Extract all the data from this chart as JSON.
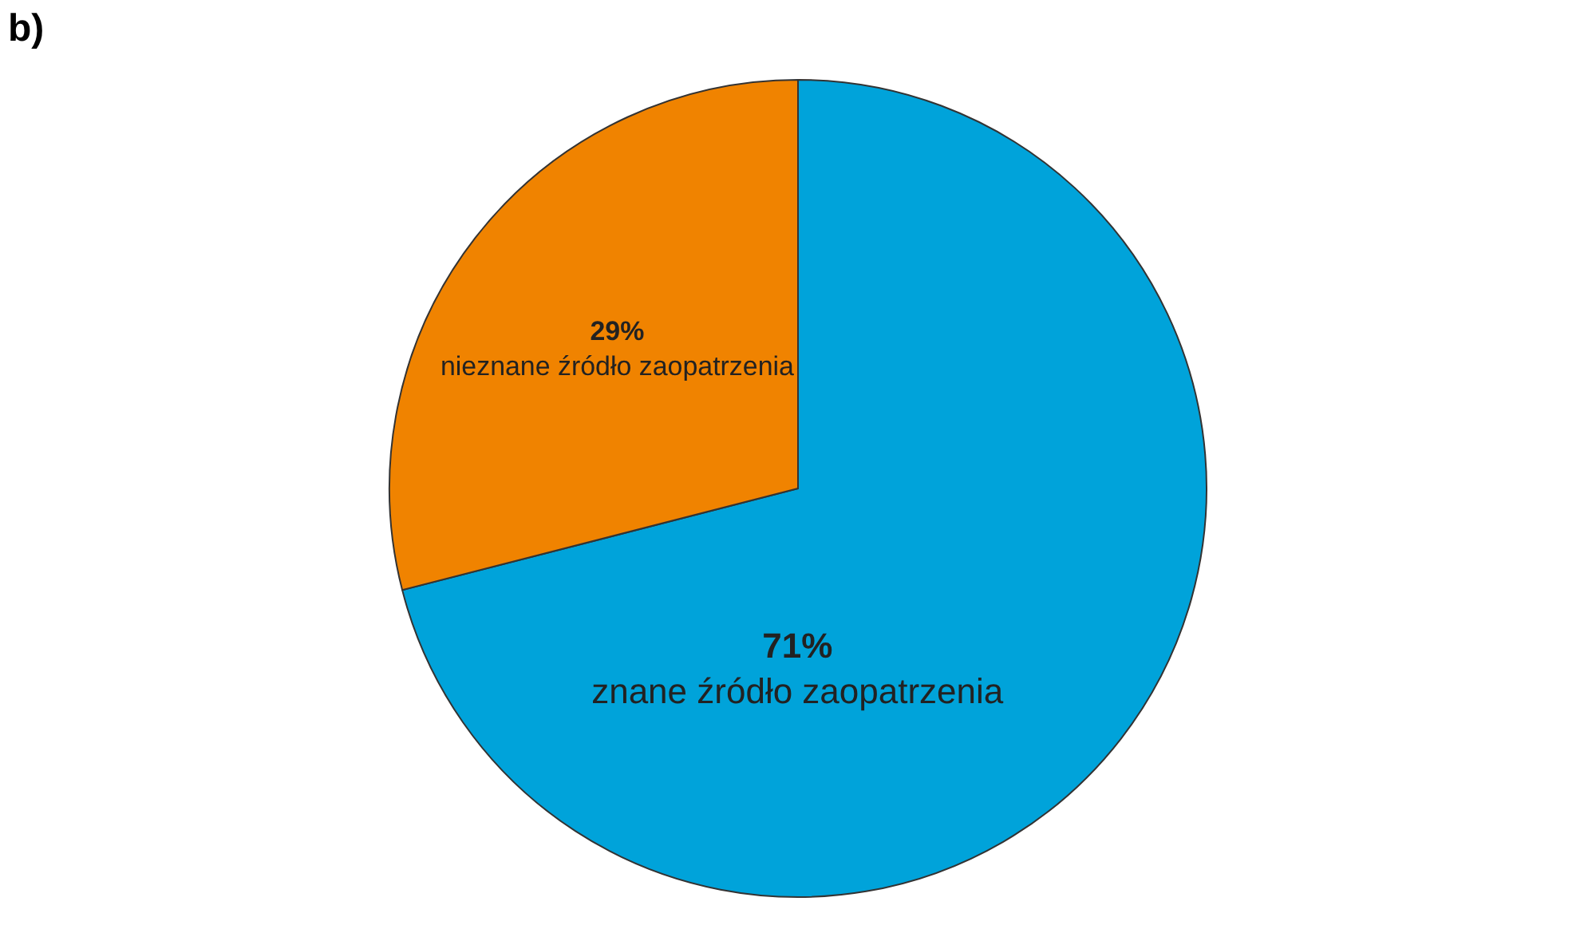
{
  "chart_data": {
    "type": "pie",
    "title": "b)",
    "categories": [
      "znane źródło zaopatrzenia",
      "nieznane źródło zaopatrzenia"
    ],
    "values": [
      71,
      29
    ],
    "value_labels": [
      "71%",
      "29%"
    ],
    "colors": [
      "#00a3da",
      "#f08300"
    ],
    "legend": false
  }
}
